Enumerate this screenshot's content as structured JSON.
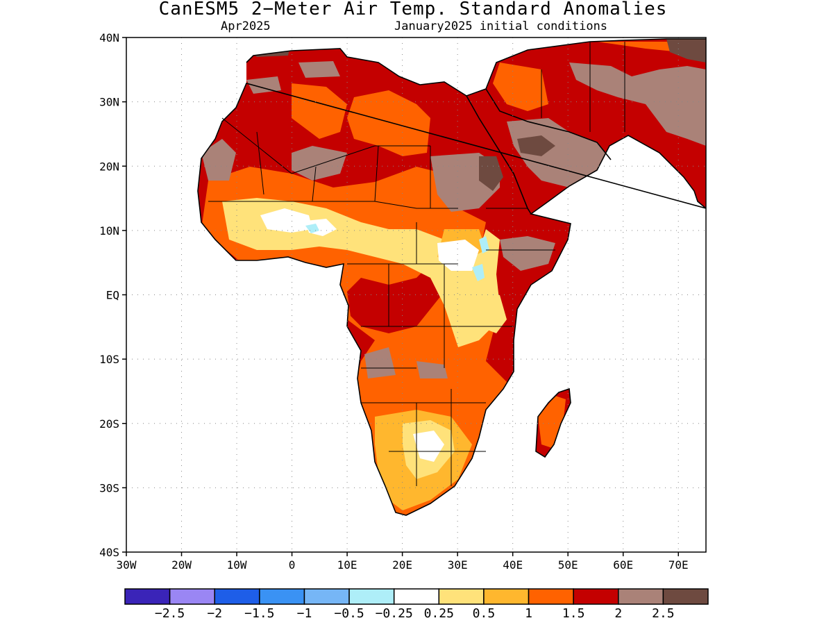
{
  "header": {
    "title": "CanESM5 2−Meter Air Temp. Standard Anomalies",
    "valid_month": "Apr2025",
    "initial_conditions": "January2025 initial conditions"
  },
  "map": {
    "lon_range": [
      -30,
      75
    ],
    "lat_range": [
      -40,
      40
    ],
    "lat_ticks": [
      {
        "value": 40,
        "label": "40N"
      },
      {
        "value": 30,
        "label": "30N"
      },
      {
        "value": 20,
        "label": "20N"
      },
      {
        "value": 10,
        "label": "10N"
      },
      {
        "value": 0,
        "label": "EQ"
      },
      {
        "value": -10,
        "label": "10S"
      },
      {
        "value": -20,
        "label": "20S"
      },
      {
        "value": -30,
        "label": "30S"
      },
      {
        "value": -40,
        "label": "40S"
      }
    ],
    "lon_ticks": [
      {
        "value": -30,
        "label": "30W"
      },
      {
        "value": -20,
        "label": "20W"
      },
      {
        "value": -10,
        "label": "10W"
      },
      {
        "value": 0,
        "label": "0"
      },
      {
        "value": 10,
        "label": "10E"
      },
      {
        "value": 20,
        "label": "20E"
      },
      {
        "value": 30,
        "label": "30E"
      },
      {
        "value": 40,
        "label": "40E"
      },
      {
        "value": 50,
        "label": "50E"
      },
      {
        "value": 60,
        "label": "60E"
      },
      {
        "value": 70,
        "label": "70E"
      }
    ],
    "grid": true
  },
  "colorbar": {
    "colors": [
      "#3a24b8",
      "#9a86f4",
      "#1e5ee8",
      "#3a92f4",
      "#76b6f6",
      "#aeeef8",
      "#ffffff",
      "#ffe27a",
      "#ffb72e",
      "#ff6200",
      "#c40000",
      "#aa8278",
      "#6e4a40"
    ],
    "labels": [
      "−2.5",
      "−2",
      "−1.5",
      "−1",
      "−0.5",
      "−0.25",
      "0.25",
      "0.5",
      "1",
      "1.5",
      "2",
      "2.5"
    ]
  }
}
